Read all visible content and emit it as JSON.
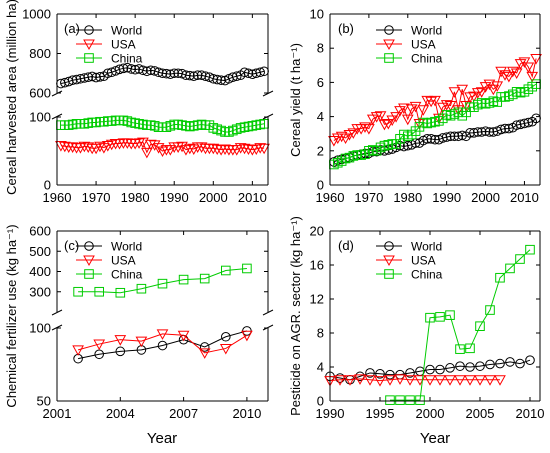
{
  "chart_data": [
    {
      "id": "a",
      "type": "line",
      "panel_label": "(a)",
      "xlabel": "",
      "ylabel": "Cereal harvested area (million ha)",
      "broken_y_axis": true,
      "segments": [
        {
          "ylim": [
            0,
            100
          ],
          "ticks": [
            0,
            100
          ]
        },
        {
          "ylim": [
            600,
            1000
          ],
          "ticks": [
            600,
            800,
            1000
          ]
        }
      ],
      "xlim": [
        1960,
        2014
      ],
      "x_ticks": [
        1960,
        1970,
        1980,
        1990,
        2000,
        2010
      ],
      "x": [
        1961,
        1962,
        1963,
        1964,
        1965,
        1966,
        1967,
        1968,
        1969,
        1970,
        1971,
        1972,
        1973,
        1974,
        1975,
        1976,
        1977,
        1978,
        1979,
        1980,
        1981,
        1982,
        1983,
        1984,
        1985,
        1986,
        1987,
        1988,
        1989,
        1990,
        1991,
        1992,
        1993,
        1994,
        1995,
        1996,
        1997,
        1998,
        1999,
        2000,
        2001,
        2002,
        2003,
        2004,
        2005,
        2006,
        2007,
        2008,
        2009,
        2010,
        2011,
        2012,
        2013
      ],
      "series": [
        {
          "name": "World",
          "marker": "circle",
          "color": "#000000",
          "values": [
            648,
            652,
            658,
            665,
            668,
            672,
            676,
            680,
            684,
            678,
            682,
            685,
            700,
            705,
            712,
            720,
            725,
            728,
            722,
            718,
            722,
            715,
            710,
            715,
            712,
            705,
            700,
            698,
            695,
            700,
            700,
            698,
            690,
            688,
            685,
            690,
            690,
            685,
            680,
            672,
            668,
            665,
            663,
            672,
            680,
            685,
            690,
            705,
            700,
            695,
            700,
            705,
            710
          ]
        },
        {
          "name": "USA",
          "marker": "triangle-down",
          "color": "#ff0000",
          "values": [
            58,
            57,
            56,
            56,
            55,
            55,
            57,
            56,
            54,
            54,
            57,
            55,
            58,
            60,
            61,
            61,
            62,
            62,
            61,
            61,
            62,
            63,
            48,
            60,
            59,
            55,
            50,
            52,
            52,
            56,
            56,
            57,
            52,
            54,
            53,
            56,
            56,
            54,
            54,
            54,
            53,
            52,
            53,
            52,
            52,
            52,
            55,
            54,
            53,
            52,
            53,
            55,
            54
          ]
        },
        {
          "name": "China",
          "marker": "square",
          "color": "#00cc00",
          "values": [
            88,
            88,
            88,
            89,
            90,
            90,
            90,
            91,
            92,
            92,
            93,
            93,
            94,
            94,
            95,
            95,
            95,
            94,
            92,
            91,
            90,
            89,
            88,
            88,
            87,
            85,
            85,
            85,
            87,
            89,
            89,
            88,
            87,
            86,
            87,
            88,
            89,
            88,
            88,
            84,
            82,
            80,
            78,
            78,
            80,
            82,
            84,
            85,
            86,
            87,
            88,
            89,
            90
          ]
        }
      ],
      "legend": {
        "placement": "top-left",
        "entries": [
          "World",
          "USA",
          "China"
        ]
      }
    },
    {
      "id": "b",
      "type": "line",
      "panel_label": "(b)",
      "xlabel": "",
      "ylabel": "Cereal yield (t ha⁻¹)",
      "ylim": [
        0,
        10
      ],
      "y_ticks": [
        0,
        2,
        4,
        6,
        8,
        10
      ],
      "xlim": [
        1960,
        2014
      ],
      "x_ticks": [
        1960,
        1970,
        1980,
        1990,
        2000,
        2010
      ],
      "x": [
        1961,
        1962,
        1963,
        1964,
        1965,
        1966,
        1967,
        1968,
        1969,
        1970,
        1971,
        1972,
        1973,
        1974,
        1975,
        1976,
        1977,
        1978,
        1979,
        1980,
        1981,
        1982,
        1983,
        1984,
        1985,
        1986,
        1987,
        1988,
        1989,
        1990,
        1991,
        1992,
        1993,
        1994,
        1995,
        1996,
        1997,
        1998,
        1999,
        2000,
        2001,
        2002,
        2003,
        2004,
        2005,
        2006,
        2007,
        2008,
        2009,
        2010,
        2011,
        2012,
        2013
      ],
      "series": [
        {
          "name": "World",
          "marker": "circle",
          "color": "#000000",
          "values": [
            1.35,
            1.45,
            1.5,
            1.55,
            1.6,
            1.7,
            1.75,
            1.8,
            1.85,
            1.85,
            1.95,
            1.95,
            2.05,
            2.0,
            2.05,
            2.1,
            2.2,
            2.3,
            2.25,
            2.3,
            2.35,
            2.45,
            2.45,
            2.6,
            2.7,
            2.7,
            2.65,
            2.65,
            2.75,
            2.8,
            2.85,
            2.85,
            2.85,
            2.9,
            2.85,
            3.05,
            3.05,
            3.1,
            3.1,
            3.15,
            3.1,
            3.1,
            3.15,
            3.25,
            3.3,
            3.3,
            3.35,
            3.5,
            3.55,
            3.6,
            3.65,
            3.7,
            3.9
          ]
        },
        {
          "name": "USA",
          "marker": "triangle-down",
          "color": "#ff0000",
          "values": [
            2.6,
            2.75,
            2.85,
            2.75,
            2.95,
            3.05,
            3.3,
            3.3,
            3.4,
            3.3,
            3.85,
            4.0,
            4.05,
            3.55,
            3.6,
            3.8,
            4.0,
            4.35,
            4.5,
            3.85,
            4.45,
            4.6,
            3.6,
            4.4,
            4.95,
            4.9,
            4.95,
            3.9,
            4.55,
            4.7,
            4.65,
            5.45,
            4.4,
            5.6,
            4.65,
            5.15,
            5.2,
            5.4,
            5.45,
            5.75,
            5.9,
            5.6,
            5.8,
            6.65,
            6.45,
            6.35,
            6.65,
            6.55,
            7.1,
            7.2,
            6.9,
            6.35,
            7.4
          ]
        },
        {
          "name": "China",
          "marker": "square",
          "color": "#00cc00",
          "values": [
            1.2,
            1.3,
            1.4,
            1.55,
            1.6,
            1.7,
            1.75,
            1.75,
            1.8,
            2.0,
            2.05,
            2.0,
            2.2,
            2.3,
            2.35,
            2.4,
            2.4,
            2.7,
            2.95,
            2.85,
            2.95,
            3.15,
            3.4,
            3.65,
            3.6,
            3.65,
            3.7,
            3.75,
            3.9,
            4.1,
            4.05,
            4.15,
            4.25,
            4.05,
            4.25,
            4.55,
            4.55,
            4.7,
            4.8,
            4.75,
            4.8,
            4.9,
            4.85,
            5.15,
            5.15,
            5.2,
            5.3,
            5.45,
            5.4,
            5.45,
            5.6,
            5.75,
            5.9
          ]
        }
      ],
      "legend": {
        "placement": "top-left",
        "entries": [
          "World",
          "USA",
          "China"
        ]
      }
    },
    {
      "id": "c",
      "type": "line",
      "panel_label": "(c)",
      "xlabel": "Year",
      "ylabel": "Chemical fertilizer use (kg ha⁻¹)",
      "broken_y_axis": true,
      "segments": [
        {
          "ylim": [
            50,
            100
          ],
          "ticks": [
            50,
            100
          ]
        },
        {
          "ylim": [
            200,
            600
          ],
          "ticks": [
            300,
            400,
            500,
            600
          ]
        }
      ],
      "xlim": [
        2001,
        2011
      ],
      "x_ticks": [
        2001,
        2004,
        2007,
        2010
      ],
      "x": [
        2002,
        2003,
        2004,
        2005,
        2006,
        2007,
        2008,
        2009,
        2010
      ],
      "series": [
        {
          "name": "World",
          "marker": "circle",
          "color": "#000000",
          "values": [
            79,
            82,
            84,
            85,
            88,
            92,
            87,
            94,
            98
          ]
        },
        {
          "name": "USA",
          "marker": "triangle-down",
          "color": "#ff0000",
          "values": [
            85,
            89,
            92,
            91,
            96,
            95,
            83,
            86,
            95
          ]
        },
        {
          "name": "China",
          "marker": "square",
          "color": "#00cc00",
          "values": [
            300,
            300,
            295,
            315,
            340,
            360,
            365,
            405,
            415
          ]
        }
      ],
      "legend": {
        "placement": "top-left",
        "entries": [
          "World",
          "USA",
          "China"
        ]
      }
    },
    {
      "id": "d",
      "type": "line",
      "panel_label": "(d)",
      "xlabel": "Year",
      "ylabel": "Pesticide on AGR. sector (kg ha⁻¹)",
      "ylim": [
        0,
        20
      ],
      "y_ticks": [
        0,
        4,
        8,
        12,
        16,
        20
      ],
      "xlim": [
        1990,
        2011
      ],
      "x_ticks": [
        1990,
        1995,
        2000,
        2005,
        2010
      ],
      "series": [
        {
          "name": "World",
          "marker": "circle",
          "color": "#000000",
          "x": [
            1990,
            1991,
            1992,
            1993,
            1994,
            1995,
            1996,
            1997,
            1998,
            1999,
            2000,
            2001,
            2002,
            2003,
            2004,
            2005,
            2006,
            2007,
            2008,
            2009,
            2010
          ],
          "values": [
            2.9,
            2.7,
            2.5,
            2.9,
            3.3,
            3.2,
            3.1,
            3.1,
            3.3,
            3.5,
            3.7,
            3.7,
            3.9,
            4.1,
            4.0,
            4.1,
            4.3,
            4.4,
            4.6,
            4.4,
            4.8
          ]
        },
        {
          "name": "USA",
          "marker": "triangle-down",
          "color": "#ff0000",
          "x": [
            1990,
            1991,
            1992,
            1993,
            1994,
            1995,
            1996,
            1997,
            1998,
            1999,
            2000,
            2001,
            2002,
            2003,
            2004,
            2005,
            2006,
            2007
          ],
          "values": [
            2.4,
            2.5,
            2.5,
            2.6,
            2.5,
            2.4,
            2.5,
            2.6,
            2.5,
            2.5,
            2.5,
            2.5,
            2.5,
            2.5,
            2.5,
            2.5,
            2.5,
            2.5
          ]
        },
        {
          "name": "China",
          "marker": "square",
          "color": "#00cc00",
          "x": [
            1996,
            1997,
            1998,
            1999,
            2000,
            2001,
            2002,
            2003,
            2004,
            2005,
            2006,
            2007,
            2008,
            2009,
            2010
          ],
          "values": [
            0.1,
            0.1,
            0.1,
            0.1,
            9.8,
            9.9,
            10.1,
            6.1,
            6.2,
            8.8,
            10.7,
            14.5,
            15.6,
            16.7,
            17.8
          ]
        }
      ],
      "legend": {
        "placement": "top-left",
        "entries": [
          "World",
          "USA",
          "China"
        ]
      }
    }
  ]
}
